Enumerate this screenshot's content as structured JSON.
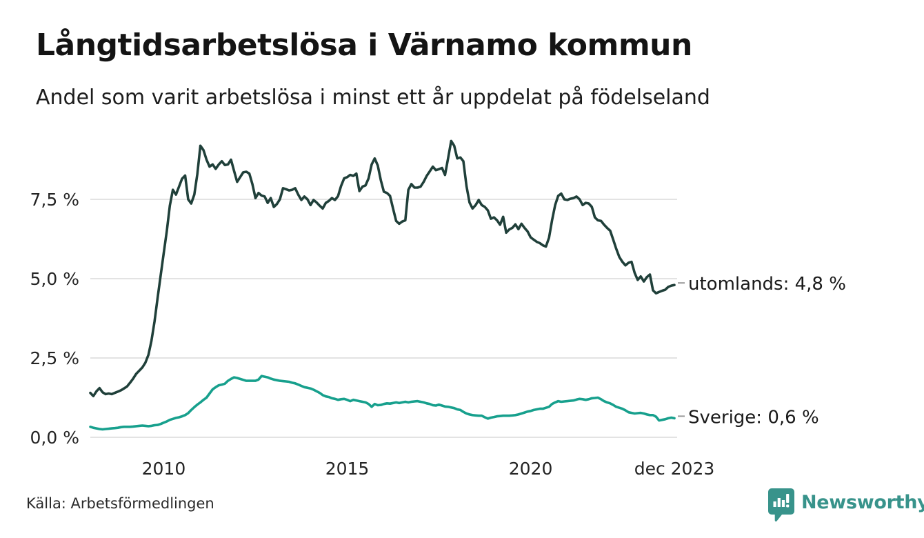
{
  "header": {
    "title": "Långtidsarbetslösa i Värnamo kommun",
    "subtitle": "Andel som varit arbetslösa i minst ett år uppdelat på födelseland"
  },
  "footer": {
    "source": "Källa: Arbetsförmedlingen",
    "logo_text": "Newsworthy"
  },
  "colors": {
    "utomlands_line": "#20403a",
    "sverige_line": "#17a08d",
    "gridline": "#e3e3e3",
    "axis_text": "#242424",
    "end_label_text": "#1a1a1a",
    "end_label_dash": "#999999",
    "logo_teal": "#38938b",
    "background": "#ffffff"
  },
  "chart_data": {
    "type": "line",
    "title": "Långtidsarbetslösa i Värnamo kommun",
    "subtitle": "Andel som varit arbetslösa i minst ett år uppdelat på födelseland",
    "unit": "%",
    "frequency": "monthly",
    "x_start": "2008-01",
    "x_end": "2023-12",
    "grid": true,
    "ylim": [
      0,
      9.66
    ],
    "yticks": [
      {
        "value": 0.0,
        "label": "0,0 %"
      },
      {
        "value": 2.5,
        "label": "2,5 %"
      },
      {
        "value": 5.0,
        "label": "5,0 %"
      },
      {
        "value": 7.5,
        "label": "7,5 %"
      }
    ],
    "xticks": [
      {
        "month_index": 24,
        "label": "2010"
      },
      {
        "month_index": 84,
        "label": "2015"
      },
      {
        "month_index": 144,
        "label": "2020"
      },
      {
        "month_index": 191,
        "label": "dec 2023"
      }
    ],
    "series": [
      {
        "name": "utomlands",
        "end_label": "utomlands: 4,8 %",
        "final_value": 4.8,
        "color_key": "utomlands_line",
        "values": [
          1.4,
          1.3,
          1.45,
          1.55,
          1.42,
          1.36,
          1.38,
          1.36,
          1.4,
          1.44,
          1.48,
          1.54,
          1.6,
          1.72,
          1.85,
          2.0,
          2.1,
          2.2,
          2.35,
          2.6,
          3.05,
          3.65,
          4.4,
          5.1,
          5.8,
          6.5,
          7.3,
          7.8,
          7.65,
          7.9,
          8.15,
          8.25,
          7.5,
          7.37,
          7.65,
          8.3,
          9.19,
          9.05,
          8.75,
          8.53,
          8.6,
          8.46,
          8.6,
          8.7,
          8.58,
          8.6,
          8.75,
          8.4,
          8.05,
          8.2,
          8.35,
          8.37,
          8.31,
          7.98,
          7.54,
          7.7,
          7.62,
          7.59,
          7.39,
          7.54,
          7.26,
          7.35,
          7.5,
          7.85,
          7.82,
          7.78,
          7.8,
          7.85,
          7.65,
          7.48,
          7.59,
          7.5,
          7.32,
          7.48,
          7.4,
          7.3,
          7.21,
          7.39,
          7.45,
          7.54,
          7.48,
          7.6,
          7.92,
          8.16,
          8.2,
          8.27,
          8.24,
          8.31,
          7.76,
          7.9,
          7.94,
          8.16,
          8.6,
          8.79,
          8.57,
          8.1,
          7.74,
          7.7,
          7.61,
          7.21,
          6.82,
          6.73,
          6.8,
          6.84,
          7.8,
          7.98,
          7.87,
          7.87,
          7.9,
          8.05,
          8.24,
          8.38,
          8.53,
          8.42,
          8.45,
          8.49,
          8.27,
          8.79,
          9.34,
          9.19,
          8.79,
          8.82,
          8.7,
          7.92,
          7.4,
          7.21,
          7.32,
          7.48,
          7.32,
          7.26,
          7.15,
          6.89,
          6.93,
          6.84,
          6.7,
          6.95,
          6.45,
          6.55,
          6.6,
          6.71,
          6.56,
          6.73,
          6.6,
          6.49,
          6.3,
          6.23,
          6.16,
          6.12,
          6.05,
          6.01,
          6.29,
          6.84,
          7.32,
          7.61,
          7.68,
          7.5,
          7.48,
          7.52,
          7.54,
          7.59,
          7.5,
          7.32,
          7.39,
          7.37,
          7.26,
          6.93,
          6.84,
          6.82,
          6.7,
          6.6,
          6.51,
          6.23,
          5.94,
          5.68,
          5.53,
          5.42,
          5.5,
          5.53,
          5.18,
          4.96,
          5.07,
          4.91,
          5.05,
          5.13,
          4.63,
          4.54,
          4.58,
          4.62,
          4.65,
          4.74,
          4.78,
          4.8
        ]
      },
      {
        "name": "Sverige",
        "end_label": "Sverige: 0,6 %",
        "final_value": 0.6,
        "color_key": "sverige_line",
        "values": [
          0.33,
          0.3,
          0.28,
          0.26,
          0.25,
          0.26,
          0.27,
          0.28,
          0.29,
          0.3,
          0.32,
          0.33,
          0.33,
          0.33,
          0.34,
          0.35,
          0.36,
          0.37,
          0.36,
          0.35,
          0.36,
          0.38,
          0.39,
          0.42,
          0.46,
          0.5,
          0.55,
          0.58,
          0.61,
          0.63,
          0.66,
          0.7,
          0.76,
          0.86,
          0.95,
          1.03,
          1.1,
          1.18,
          1.25,
          1.38,
          1.51,
          1.58,
          1.64,
          1.66,
          1.69,
          1.78,
          1.84,
          1.89,
          1.87,
          1.84,
          1.81,
          1.78,
          1.78,
          1.78,
          1.78,
          1.82,
          1.93,
          1.91,
          1.89,
          1.85,
          1.82,
          1.8,
          1.78,
          1.77,
          1.76,
          1.75,
          1.72,
          1.7,
          1.66,
          1.62,
          1.58,
          1.56,
          1.54,
          1.5,
          1.45,
          1.4,
          1.33,
          1.29,
          1.27,
          1.23,
          1.21,
          1.18,
          1.2,
          1.21,
          1.18,
          1.14,
          1.18,
          1.16,
          1.14,
          1.12,
          1.1,
          1.05,
          0.96,
          1.05,
          1.01,
          1.02,
          1.05,
          1.07,
          1.06,
          1.08,
          1.1,
          1.08,
          1.1,
          1.12,
          1.1,
          1.12,
          1.13,
          1.14,
          1.12,
          1.1,
          1.07,
          1.05,
          1.01,
          1.0,
          1.03,
          1.0,
          0.97,
          0.96,
          0.94,
          0.92,
          0.88,
          0.86,
          0.8,
          0.75,
          0.72,
          0.7,
          0.69,
          0.68,
          0.68,
          0.63,
          0.59,
          0.62,
          0.64,
          0.66,
          0.67,
          0.68,
          0.68,
          0.68,
          0.69,
          0.7,
          0.72,
          0.75,
          0.78,
          0.81,
          0.83,
          0.86,
          0.88,
          0.9,
          0.9,
          0.93,
          0.96,
          1.05,
          1.1,
          1.14,
          1.12,
          1.13,
          1.14,
          1.15,
          1.16,
          1.19,
          1.21,
          1.2,
          1.18,
          1.2,
          1.23,
          1.24,
          1.25,
          1.2,
          1.14,
          1.1,
          1.07,
          1.02,
          0.96,
          0.93,
          0.9,
          0.85,
          0.79,
          0.77,
          0.75,
          0.76,
          0.77,
          0.75,
          0.72,
          0.7,
          0.7,
          0.65,
          0.53,
          0.55,
          0.57,
          0.6,
          0.62,
          0.6
        ]
      }
    ]
  }
}
